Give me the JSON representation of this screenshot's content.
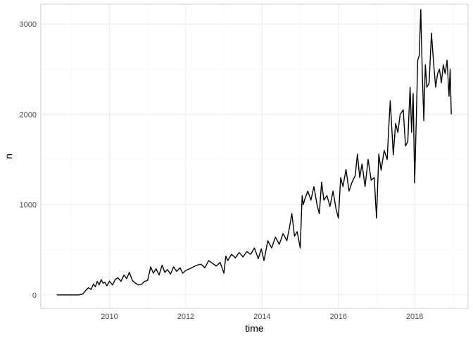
{
  "chart_data": {
    "type": "line",
    "title": "",
    "xlabel": "time",
    "ylabel": "n",
    "xlim": [
      2008.2,
      2019.4
    ],
    "ylim": [
      -150,
      3220
    ],
    "x_ticks": [
      2010,
      2012,
      2014,
      2016,
      2018
    ],
    "x_tick_labels": [
      "2010",
      "2012",
      "2014",
      "2016",
      "2018"
    ],
    "y_ticks": [
      0,
      1000,
      2000,
      3000
    ],
    "y_tick_labels": [
      "0",
      "1000",
      "2000",
      "3000"
    ],
    "grid": true,
    "legend": "none",
    "line_color": "#000000",
    "series": [
      {
        "x": [
          2008.62,
          2008.8,
          2009.0,
          2009.2,
          2009.3,
          2009.38,
          2009.45,
          2009.52,
          2009.58,
          2009.63,
          2009.68,
          2009.73,
          2009.78,
          2009.83,
          2009.88,
          2009.93,
          2010.0,
          2010.08,
          2010.15,
          2010.22,
          2010.3,
          2010.38,
          2010.45,
          2010.52,
          2010.6,
          2010.68,
          2010.76,
          2010.85,
          2010.92,
          2011.0,
          2011.08,
          2011.15,
          2011.22,
          2011.3,
          2011.38,
          2011.45,
          2011.52,
          2011.6,
          2011.68,
          2011.76,
          2011.85,
          2011.92,
          2012.0,
          2012.1,
          2012.2,
          2012.3,
          2012.4,
          2012.5,
          2012.6,
          2012.7,
          2012.8,
          2012.9,
          2013.0,
          2013.05,
          2013.1,
          2013.2,
          2013.3,
          2013.4,
          2013.5,
          2013.6,
          2013.7,
          2013.8,
          2013.9,
          2013.98,
          2014.05,
          2014.15,
          2014.25,
          2014.35,
          2014.45,
          2014.55,
          2014.65,
          2014.72,
          2014.78,
          2014.85,
          2014.92,
          2015.0,
          2015.05,
          2015.08,
          2015.12,
          2015.2,
          2015.28,
          2015.36,
          2015.44,
          2015.5,
          2015.56,
          2015.62,
          2015.7,
          2015.78,
          2015.86,
          2015.94,
          2016.0,
          2016.06,
          2016.12,
          2016.2,
          2016.28,
          2016.36,
          2016.44,
          2016.5,
          2016.56,
          2016.62,
          2016.7,
          2016.78,
          2016.86,
          2016.94,
          2017.0,
          2017.06,
          2017.12,
          2017.2,
          2017.28,
          2017.32,
          2017.36,
          2017.44,
          2017.5,
          2017.56,
          2017.62,
          2017.7,
          2017.76,
          2017.82,
          2017.88,
          2017.92,
          2017.96,
          2018.0,
          2018.04,
          2018.08,
          2018.12,
          2018.16,
          2018.2,
          2018.24,
          2018.28,
          2018.32,
          2018.38,
          2018.44,
          2018.5,
          2018.55,
          2018.6,
          2018.65,
          2018.7,
          2018.75,
          2018.8,
          2018.85,
          2018.9,
          2018.93,
          2018.96
        ],
        "values": [
          0,
          0,
          0,
          0,
          10,
          50,
          80,
          60,
          120,
          90,
          150,
          110,
          170,
          130,
          140,
          100,
          150,
          110,
          170,
          190,
          150,
          220,
          180,
          250,
          160,
          130,
          110,
          120,
          150,
          160,
          310,
          240,
          290,
          220,
          330,
          250,
          280,
          230,
          310,
          260,
          300,
          240,
          270,
          290,
          310,
          330,
          340,
          300,
          380,
          350,
          320,
          360,
          240,
          430,
          380,
          450,
          410,
          470,
          420,
          480,
          450,
          520,
          400,
          510,
          380,
          600,
          520,
          640,
          560,
          680,
          600,
          750,
          900,
          650,
          700,
          520,
          1100,
          1000,
          1060,
          1150,
          1050,
          1200,
          1000,
          900,
          1250,
          1050,
          1100,
          980,
          1150,
          950,
          850,
          1300,
          1200,
          1390,
          1150,
          1250,
          1320,
          1560,
          1300,
          1450,
          1200,
          1500,
          1270,
          1300,
          850,
          1560,
          1380,
          1600,
          1500,
          1850,
          2150,
          1550,
          1900,
          1800,
          2000,
          2050,
          1650,
          1700,
          2300,
          1800,
          2230,
          1240,
          1900,
          2600,
          2650,
          3160,
          2450,
          1930,
          2550,
          2300,
          2350,
          2900,
          2550,
          2300,
          2450,
          2500,
          2350,
          2550,
          2450,
          2600,
          2200,
          2500,
          2000
        ]
      }
    ]
  }
}
